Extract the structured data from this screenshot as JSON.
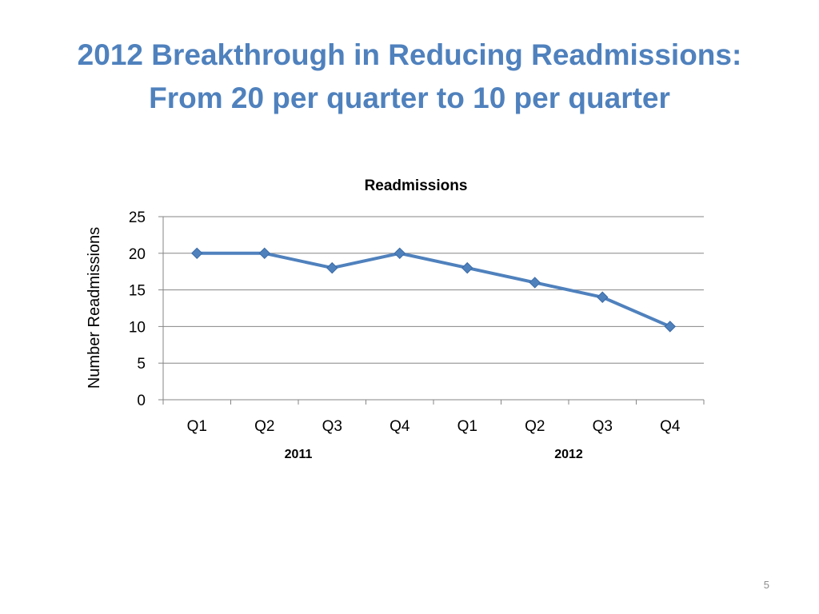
{
  "slide": {
    "title_line1": "2012 Breakthrough in Reducing Readmissions:",
    "title_line2": "From 20 per quarter to 10 per quarter",
    "page_number": "5"
  },
  "colors": {
    "title": "#4F81BD",
    "series": "#4F81BD",
    "grid": "#868686",
    "text": "#000000"
  },
  "chart_data": {
    "type": "line",
    "title": "Readmissions",
    "xlabel": "",
    "ylabel": "Number Readmissions",
    "categories": [
      "Q1",
      "Q2",
      "Q3",
      "Q4",
      "Q1",
      "Q2",
      "Q3",
      "Q4"
    ],
    "category_groups": [
      {
        "label": "2011",
        "start": 0,
        "end": 3
      },
      {
        "label": "2012",
        "start": 4,
        "end": 7
      }
    ],
    "series": [
      {
        "values": [
          20,
          20,
          18,
          20,
          18,
          16,
          14,
          10
        ],
        "marker": "diamond"
      }
    ],
    "ylim": [
      0,
      25
    ],
    "yticks": [
      0,
      5,
      10,
      15,
      20,
      25
    ],
    "grid": true,
    "legend": "none"
  }
}
